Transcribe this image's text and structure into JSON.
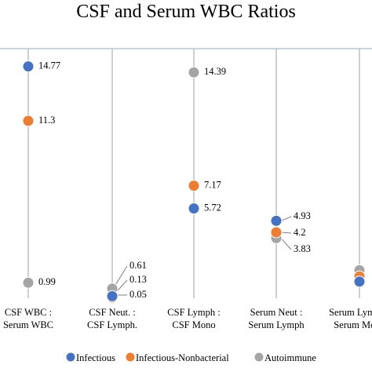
{
  "chart_data": {
    "type": "scatter",
    "title": "CSF and Serum WBC Ratios",
    "categories": [
      [
        "CSF WBC :",
        "Serum WBC"
      ],
      [
        "CSF Neut. :",
        "CSF Lymph."
      ],
      [
        "CSF Lymph :",
        "CSF Mono"
      ],
      [
        "Serum Neut :",
        "Serum Lymph"
      ],
      [
        "Serum Lymph :",
        "Serum Mono"
      ]
    ],
    "ylim": [
      0,
      16
    ],
    "series": [
      {
        "name": "Infectious",
        "color": "#4472C4",
        "values": [
          14.77,
          0.13,
          5.72,
          4.93,
          1.06
        ]
      },
      {
        "name": "Infectious-Nonbacterial",
        "color": "#ED7D31",
        "values": [
          11.3,
          0.05,
          7.17,
          4.2,
          1.39
        ]
      },
      {
        "name": "Autoimmune",
        "color": "#A5A5A5",
        "values": [
          0.99,
          0.61,
          14.39,
          3.83,
          1.78
        ]
      }
    ],
    "data_labels": [
      [
        "14.77",
        "11.3",
        "0.99"
      ],
      [
        "0.61",
        "0.13",
        "0.05"
      ],
      [
        "14.39",
        "7.17",
        "5.72"
      ],
      [
        "4.93",
        "4.2",
        "3.83"
      ],
      [
        null,
        null,
        null
      ]
    ],
    "grid": {
      "vertical_lines": true,
      "top_border": true
    },
    "legend_position": "bottom"
  }
}
